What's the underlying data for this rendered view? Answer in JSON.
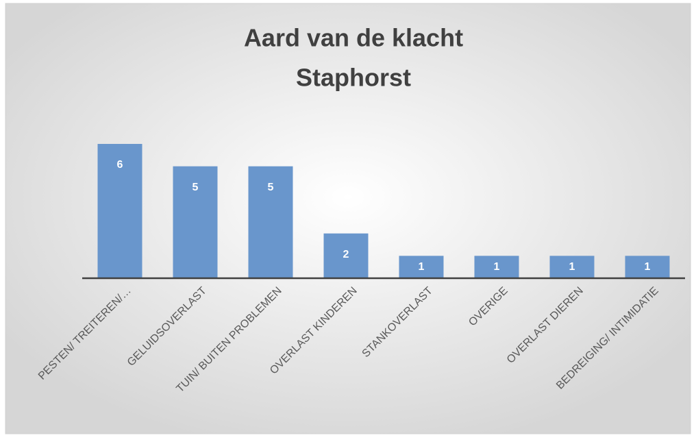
{
  "chart_data": {
    "type": "bar",
    "title": "Aard van de klacht",
    "subtitle": "Staphorst",
    "categories": [
      "PESTEN/ TREITEREN/…",
      "GELUIDSOVERLAST",
      "TUIN/ BUITEN PROBLEMEN",
      "OVERLAST KINDEREN",
      "STANKOVERLAST",
      "OVERIGE",
      "OVERLAST DIEREN",
      "BEDREIGING/ INTIMIDATIE"
    ],
    "values": [
      6,
      5,
      5,
      2,
      1,
      1,
      1,
      1
    ],
    "color": "#6996cc"
  }
}
